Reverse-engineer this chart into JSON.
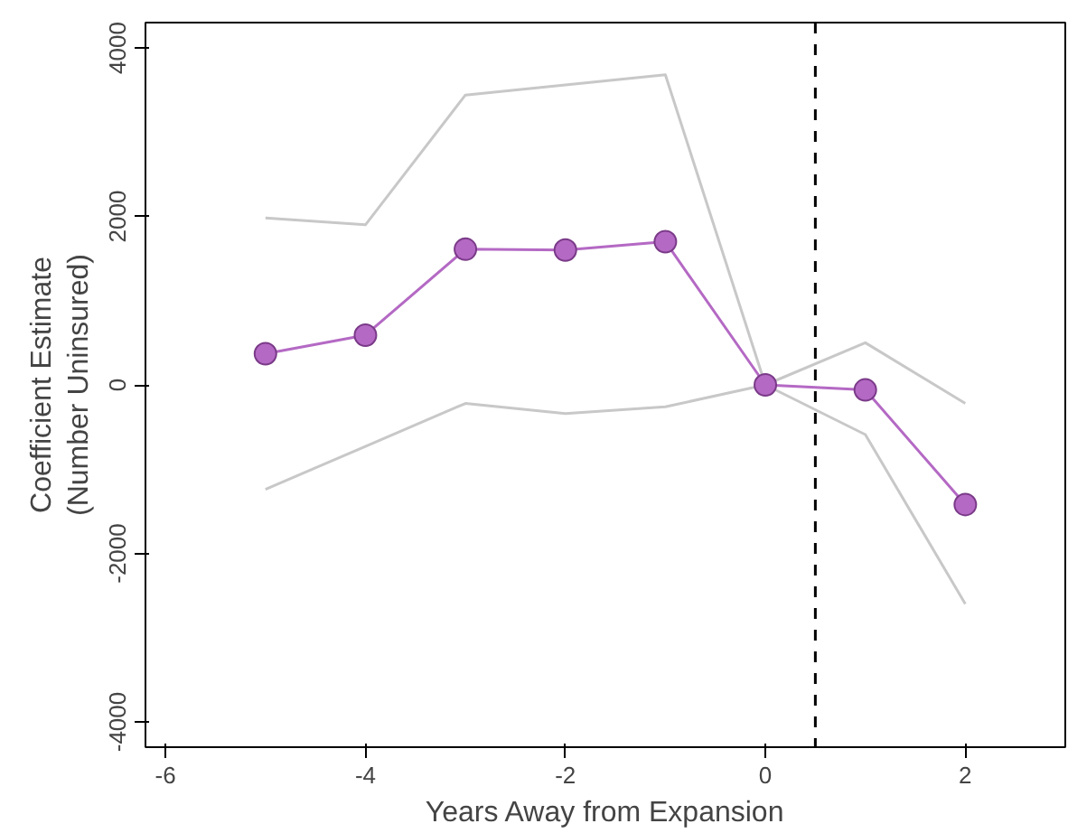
{
  "chart_data": {
    "type": "line",
    "xlabel": "Years Away from Expansion",
    "ylabel": "Coefficient Estimate\n(Number Uninsured)",
    "x": [
      -5,
      -4,
      -3,
      -2,
      -1,
      0,
      1,
      2
    ],
    "series": [
      {
        "color": "#c8c8c8",
        "marker": "none",
        "values": [
          1980,
          1900,
          3440,
          3560,
          3680,
          0,
          500,
          -220
        ]
      },
      {
        "color": "#c8c8c8",
        "marker": "none",
        "values": [
          -1240,
          -730,
          -220,
          -340,
          -260,
          0,
          -590,
          -2600
        ]
      },
      {
        "color": "#b469c4",
        "values": [
          370,
          590,
          1610,
          1600,
          1700,
          0,
          -60,
          -1420
        ]
      }
    ],
    "xlim": [
      -6.2,
      3
    ],
    "ylim": [
      -4300,
      4300
    ],
    "xticks": [
      -6,
      -4,
      -2,
      0,
      2
    ],
    "yticks": [
      -4000,
      -2000,
      0,
      2000,
      4000
    ],
    "ref_lines": [
      {
        "axis": "x",
        "value": 0.5,
        "label": null,
        "color": "#000000",
        "line_style": "dashed"
      }
    ],
    "grid": false,
    "marker": "circle",
    "line_style": "solid"
  }
}
